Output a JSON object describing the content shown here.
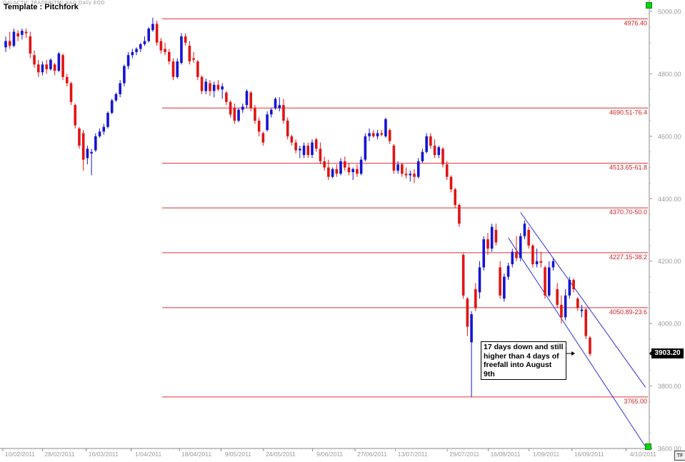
{
  "header": {
    "brand": "GALACTIC TRADER(TM)   XAO Daily EOD",
    "template": "Template : Pitchfork"
  },
  "annotation": {
    "text": "17 days down and still\nhigher than 4 days of\nfreefall into August 9th"
  },
  "last_price": "3903.20",
  "tf_label": "TF",
  "colors": {
    "up": "#1414d2",
    "down": "#e01414",
    "fib_line": "#e03030",
    "fib_text": "#d02020",
    "pitchfork": "#2d2de6",
    "axis": "#888888"
  },
  "chart_data": {
    "type": "candlestick",
    "title": "",
    "ylim": [
      3600,
      5000
    ],
    "y_ticks": [
      "5000.00",
      "4800.00",
      "4600.00",
      "4400.00",
      "4200.00",
      "4000.00",
      "3800.00",
      "3600.00"
    ],
    "x_ticks": [
      "10/02/2011",
      "28/02/2011",
      "16/03/2011",
      "1/04/2011",
      "18/04/2011",
      "9/05/2011",
      "24/05/2011",
      "9/06/2011",
      "27/06/2011",
      "13/07/2011",
      "29/07/2011",
      "16/08/2011",
      "1/09/2011",
      "16/09/2011",
      "4/10/2011"
    ],
    "retracement_levels": [
      {
        "price": 4976.4,
        "label": "4976.40"
      },
      {
        "price": 4690.51,
        "label": "4690.51-76.4"
      },
      {
        "price": 4513.65,
        "label": "4513.65-61.8"
      },
      {
        "price": 4370.7,
        "label": "4370.70-50.0"
      },
      {
        "price": 4227.15,
        "label": "4227.15-38.2"
      },
      {
        "price": 4050.89,
        "label": "4050.89-23.6"
      },
      {
        "price": 3765.0,
        "label": "3765.00"
      }
    ],
    "pitchfork": [
      {
        "from": [
          4,
          4356
        ],
        "to": [
          19,
          3796
        ]
      },
      {
        "from": [
          1,
          4275
        ],
        "to": [
          19,
          3606
        ]
      }
    ],
    "candles": [
      {
        "x": 0,
        "o": 4885,
        "h": 4920,
        "l": 4870,
        "c": 4905
      },
      {
        "x": 1,
        "o": 4905,
        "h": 4935,
        "l": 4880,
        "c": 4890
      },
      {
        "x": 2,
        "o": 4890,
        "h": 4945,
        "l": 4885,
        "c": 4935
      },
      {
        "x": 3,
        "o": 4930,
        "h": 4940,
        "l": 4905,
        "c": 4920
      },
      {
        "x": 4,
        "o": 4925,
        "h": 4945,
        "l": 4910,
        "c": 4938
      },
      {
        "x": 5,
        "o": 4935,
        "h": 4945,
        "l": 4915,
        "c": 4930
      },
      {
        "x": 6,
        "o": 4920,
        "h": 4935,
        "l": 4850,
        "c": 4865
      },
      {
        "x": 7,
        "o": 4860,
        "h": 4875,
        "l": 4820,
        "c": 4830
      },
      {
        "x": 8,
        "o": 4830,
        "h": 4845,
        "l": 4790,
        "c": 4805
      },
      {
        "x": 9,
        "o": 4805,
        "h": 4840,
        "l": 4795,
        "c": 4830
      },
      {
        "x": 10,
        "o": 4830,
        "h": 4845,
        "l": 4800,
        "c": 4815
      },
      {
        "x": 11,
        "o": 4815,
        "h": 4850,
        "l": 4810,
        "c": 4845
      },
      {
        "x": 12,
        "o": 4830,
        "h": 4835,
        "l": 4795,
        "c": 4810
      },
      {
        "x": 13,
        "o": 4810,
        "h": 4870,
        "l": 4805,
        "c": 4865
      },
      {
        "x": 14,
        "o": 4860,
        "h": 4865,
        "l": 4780,
        "c": 4790
      },
      {
        "x": 15,
        "o": 4790,
        "h": 4800,
        "l": 4760,
        "c": 4770
      },
      {
        "x": 16,
        "o": 4770,
        "h": 4775,
        "l": 4700,
        "c": 4710
      },
      {
        "x": 17,
        "o": 4700,
        "h": 4705,
        "l": 4625,
        "c": 4635
      },
      {
        "x": 18,
        "o": 4625,
        "h": 4630,
        "l": 4560,
        "c": 4570
      },
      {
        "x": 19,
        "o": 4610,
        "h": 4620,
        "l": 4490,
        "c": 4525
      },
      {
        "x": 20,
        "o": 4530,
        "h": 4570,
        "l": 4510,
        "c": 4560
      },
      {
        "x": 21,
        "o": 4545,
        "h": 4560,
        "l": 4475,
        "c": 4550
      },
      {
        "x": 22,
        "o": 4555,
        "h": 4610,
        "l": 4550,
        "c": 4600
      },
      {
        "x": 23,
        "o": 4600,
        "h": 4625,
        "l": 4595,
        "c": 4615
      },
      {
        "x": 24,
        "o": 4615,
        "h": 4640,
        "l": 4605,
        "c": 4630
      },
      {
        "x": 25,
        "o": 4630,
        "h": 4680,
        "l": 4625,
        "c": 4675
      },
      {
        "x": 26,
        "o": 4675,
        "h": 4720,
        "l": 4670,
        "c": 4715
      },
      {
        "x": 27,
        "o": 4715,
        "h": 4740,
        "l": 4710,
        "c": 4735
      },
      {
        "x": 28,
        "o": 4735,
        "h": 4780,
        "l": 4725,
        "c": 4770
      },
      {
        "x": 29,
        "o": 4770,
        "h": 4830,
        "l": 4760,
        "c": 4825
      },
      {
        "x": 30,
        "o": 4825,
        "h": 4870,
        "l": 4815,
        "c": 4860
      },
      {
        "x": 31,
        "o": 4860,
        "h": 4880,
        "l": 4850,
        "c": 4870
      },
      {
        "x": 32,
        "o": 4870,
        "h": 4885,
        "l": 4860,
        "c": 4880
      },
      {
        "x": 33,
        "o": 4880,
        "h": 4900,
        "l": 4870,
        "c": 4895
      },
      {
        "x": 34,
        "o": 4895,
        "h": 4920,
        "l": 4890,
        "c": 4905
      },
      {
        "x": 35,
        "o": 4905,
        "h": 4950,
        "l": 4900,
        "c": 4945
      },
      {
        "x": 36,
        "o": 4940,
        "h": 4980,
        "l": 4935,
        "c": 4960
      },
      {
        "x": 37,
        "o": 4960,
        "h": 4970,
        "l": 4890,
        "c": 4900
      },
      {
        "x": 38,
        "o": 4905,
        "h": 4915,
        "l": 4865,
        "c": 4875
      },
      {
        "x": 39,
        "o": 4880,
        "h": 4900,
        "l": 4860,
        "c": 4870
      },
      {
        "x": 40,
        "o": 4870,
        "h": 4880,
        "l": 4830,
        "c": 4840
      },
      {
        "x": 41,
        "o": 4840,
        "h": 4850,
        "l": 4780,
        "c": 4790
      },
      {
        "x": 42,
        "o": 4790,
        "h": 4850,
        "l": 4785,
        "c": 4840
      },
      {
        "x": 43,
        "o": 4835,
        "h": 4930,
        "l": 4830,
        "c": 4920
      },
      {
        "x": 44,
        "o": 4920,
        "h": 4930,
        "l": 4890,
        "c": 4900
      },
      {
        "x": 45,
        "o": 4890,
        "h": 4905,
        "l": 4830,
        "c": 4840
      },
      {
        "x": 46,
        "o": 4850,
        "h": 4870,
        "l": 4835,
        "c": 4845
      },
      {
        "x": 47,
        "o": 4840,
        "h": 4845,
        "l": 4780,
        "c": 4790
      },
      {
        "x": 48,
        "o": 4790,
        "h": 4795,
        "l": 4735,
        "c": 4745
      },
      {
        "x": 49,
        "o": 4745,
        "h": 4785,
        "l": 4735,
        "c": 4775
      },
      {
        "x": 50,
        "o": 4770,
        "h": 4780,
        "l": 4730,
        "c": 4745
      },
      {
        "x": 51,
        "o": 4745,
        "h": 4775,
        "l": 4725,
        "c": 4765
      },
      {
        "x": 52,
        "o": 4765,
        "h": 4780,
        "l": 4745,
        "c": 4750
      },
      {
        "x": 53,
        "o": 4750,
        "h": 4770,
        "l": 4720,
        "c": 4760
      },
      {
        "x": 54,
        "o": 4740,
        "h": 4745,
        "l": 4700,
        "c": 4710
      },
      {
        "x": 55,
        "o": 4710,
        "h": 4715,
        "l": 4660,
        "c": 4670
      },
      {
        "x": 56,
        "o": 4690,
        "h": 4705,
        "l": 4640,
        "c": 4650
      },
      {
        "x": 57,
        "o": 4650,
        "h": 4690,
        "l": 4645,
        "c": 4685
      },
      {
        "x": 58,
        "o": 4685,
        "h": 4705,
        "l": 4675,
        "c": 4695
      },
      {
        "x": 59,
        "o": 4700,
        "h": 4750,
        "l": 4690,
        "c": 4745
      },
      {
        "x": 60,
        "o": 4740,
        "h": 4745,
        "l": 4680,
        "c": 4690
      },
      {
        "x": 61,
        "o": 4690,
        "h": 4700,
        "l": 4640,
        "c": 4650
      },
      {
        "x": 62,
        "o": 4650,
        "h": 4660,
        "l": 4600,
        "c": 4615
      },
      {
        "x": 63,
        "o": 4610,
        "h": 4615,
        "l": 4570,
        "c": 4580
      },
      {
        "x": 64,
        "o": 4620,
        "h": 4680,
        "l": 4615,
        "c": 4670
      },
      {
        "x": 65,
        "o": 4670,
        "h": 4690,
        "l": 4660,
        "c": 4685
      },
      {
        "x": 66,
        "o": 4690,
        "h": 4725,
        "l": 4685,
        "c": 4720
      },
      {
        "x": 67,
        "o": 4690,
        "h": 4725,
        "l": 4680,
        "c": 4700
      },
      {
        "x": 68,
        "o": 4700,
        "h": 4720,
        "l": 4640,
        "c": 4650
      },
      {
        "x": 69,
        "o": 4650,
        "h": 4660,
        "l": 4590,
        "c": 4600
      },
      {
        "x": 70,
        "o": 4600,
        "h": 4605,
        "l": 4570,
        "c": 4580
      },
      {
        "x": 71,
        "o": 4580,
        "h": 4590,
        "l": 4545,
        "c": 4555
      },
      {
        "x": 72,
        "o": 4555,
        "h": 4570,
        "l": 4530,
        "c": 4560
      },
      {
        "x": 73,
        "o": 4540,
        "h": 4580,
        "l": 4530,
        "c": 4570
      },
      {
        "x": 74,
        "o": 4570,
        "h": 4580,
        "l": 4530,
        "c": 4540
      },
      {
        "x": 75,
        "o": 4540,
        "h": 4590,
        "l": 4530,
        "c": 4580
      },
      {
        "x": 76,
        "o": 4590,
        "h": 4595,
        "l": 4550,
        "c": 4560
      },
      {
        "x": 77,
        "o": 4560,
        "h": 4580,
        "l": 4510,
        "c": 4520
      },
      {
        "x": 78,
        "o": 4520,
        "h": 4535,
        "l": 4490,
        "c": 4500
      },
      {
        "x": 79,
        "o": 4500,
        "h": 4525,
        "l": 4460,
        "c": 4470
      },
      {
        "x": 80,
        "o": 4470,
        "h": 4500,
        "l": 4465,
        "c": 4495
      },
      {
        "x": 81,
        "o": 4495,
        "h": 4510,
        "l": 4470,
        "c": 4480
      },
      {
        "x": 82,
        "o": 4480,
        "h": 4530,
        "l": 4475,
        "c": 4520
      },
      {
        "x": 83,
        "o": 4520,
        "h": 4535,
        "l": 4490,
        "c": 4500
      },
      {
        "x": 84,
        "o": 4500,
        "h": 4515,
        "l": 4475,
        "c": 4485
      },
      {
        "x": 85,
        "o": 4485,
        "h": 4500,
        "l": 4460,
        "c": 4495
      },
      {
        "x": 86,
        "o": 4495,
        "h": 4510,
        "l": 4470,
        "c": 4480
      },
      {
        "x": 87,
        "o": 4480,
        "h": 4535,
        "l": 4475,
        "c": 4525
      },
      {
        "x": 88,
        "o": 4525,
        "h": 4610,
        "l": 4520,
        "c": 4600
      },
      {
        "x": 89,
        "o": 4600,
        "h": 4625,
        "l": 4585,
        "c": 4610
      },
      {
        "x": 90,
        "o": 4610,
        "h": 4620,
        "l": 4595,
        "c": 4600
      },
      {
        "x": 91,
        "o": 4600,
        "h": 4620,
        "l": 4590,
        "c": 4610
      },
      {
        "x": 92,
        "o": 4610,
        "h": 4620,
        "l": 4600,
        "c": 4605
      },
      {
        "x": 93,
        "o": 4600,
        "h": 4660,
        "l": 4595,
        "c": 4655
      },
      {
        "x": 94,
        "o": 4620,
        "h": 4625,
        "l": 4575,
        "c": 4585
      },
      {
        "x": 95,
        "o": 4570,
        "h": 4575,
        "l": 4480,
        "c": 4490
      },
      {
        "x": 96,
        "o": 4490,
        "h": 4520,
        "l": 4480,
        "c": 4510
      },
      {
        "x": 97,
        "o": 4510,
        "h": 4515,
        "l": 4470,
        "c": 4480
      },
      {
        "x": 98,
        "o": 4480,
        "h": 4500,
        "l": 4465,
        "c": 4475
      },
      {
        "x": 99,
        "o": 4475,
        "h": 4490,
        "l": 4455,
        "c": 4480
      },
      {
        "x": 100,
        "o": 4480,
        "h": 4495,
        "l": 4450,
        "c": 4470
      },
      {
        "x": 101,
        "o": 4470,
        "h": 4530,
        "l": 4465,
        "c": 4520
      },
      {
        "x": 102,
        "o": 4520,
        "h": 4560,
        "l": 4515,
        "c": 4550
      },
      {
        "x": 103,
        "o": 4550,
        "h": 4610,
        "l": 4545,
        "c": 4600
      },
      {
        "x": 104,
        "o": 4600,
        "h": 4610,
        "l": 4560,
        "c": 4570
      },
      {
        "x": 105,
        "o": 4570,
        "h": 4590,
        "l": 4530,
        "c": 4540
      },
      {
        "x": 106,
        "o": 4540,
        "h": 4570,
        "l": 4530,
        "c": 4565
      },
      {
        "x": 107,
        "o": 4560,
        "h": 4565,
        "l": 4500,
        "c": 4510
      },
      {
        "x": 108,
        "o": 4510,
        "h": 4520,
        "l": 4460,
        "c": 4470
      },
      {
        "x": 109,
        "o": 4470,
        "h": 4475,
        "l": 4420,
        "c": 4430
      },
      {
        "x": 110,
        "o": 4430,
        "h": 4435,
        "l": 4370,
        "c": 4380
      },
      {
        "x": 111,
        "o": 4380,
        "h": 4385,
        "l": 4310,
        "c": 4320
      },
      {
        "x": 112,
        "o": 4220,
        "h": 4225,
        "l": 4080,
        "c": 4090
      },
      {
        "x": 113,
        "o": 4080,
        "h": 4085,
        "l": 3960,
        "c": 3990
      },
      {
        "x": 114,
        "o": 3940,
        "h": 4040,
        "l": 3765,
        "c": 4030
      },
      {
        "x": 115,
        "o": 4110,
        "h": 4130,
        "l": 4040,
        "c": 4050
      },
      {
        "x": 116,
        "o": 4100,
        "h": 4200,
        "l": 4080,
        "c": 4180
      },
      {
        "x": 117,
        "o": 4180,
        "h": 4280,
        "l": 4170,
        "c": 4270
      },
      {
        "x": 118,
        "o": 4270,
        "h": 4290,
        "l": 4220,
        "c": 4240
      },
      {
        "x": 119,
        "o": 4240,
        "h": 4320,
        "l": 4230,
        "c": 4310
      },
      {
        "x": 120,
        "o": 4300,
        "h": 4320,
        "l": 4250,
        "c": 4260
      },
      {
        "x": 121,
        "o": 4180,
        "h": 4200,
        "l": 4080,
        "c": 4090
      },
      {
        "x": 122,
        "o": 4080,
        "h": 4160,
        "l": 4070,
        "c": 4150
      },
      {
        "x": 123,
        "o": 4150,
        "h": 4195,
        "l": 4140,
        "c": 4185
      },
      {
        "x": 124,
        "o": 4190,
        "h": 4240,
        "l": 4180,
        "c": 4230
      },
      {
        "x": 125,
        "o": 4230,
        "h": 4280,
        "l": 4200,
        "c": 4210
      },
      {
        "x": 126,
        "o": 4210,
        "h": 4290,
        "l": 4200,
        "c": 4280
      },
      {
        "x": 127,
        "o": 4280,
        "h": 4330,
        "l": 4270,
        "c": 4320
      },
      {
        "x": 128,
        "o": 4300,
        "h": 4310,
        "l": 4240,
        "c": 4250
      },
      {
        "x": 129,
        "o": 4250,
        "h": 4255,
        "l": 4180,
        "c": 4190
      },
      {
        "x": 130,
        "o": 4190,
        "h": 4240,
        "l": 4180,
        "c": 4200
      },
      {
        "x": 131,
        "o": 4200,
        "h": 4230,
        "l": 4180,
        "c": 4195
      },
      {
        "x": 132,
        "o": 4180,
        "h": 4185,
        "l": 4080,
        "c": 4090
      },
      {
        "x": 133,
        "o": 4090,
        "h": 4200,
        "l": 4085,
        "c": 4180
      },
      {
        "x": 134,
        "o": 4180,
        "h": 4210,
        "l": 4170,
        "c": 4200
      },
      {
        "x": 135,
        "o": 4110,
        "h": 4130,
        "l": 4050,
        "c": 4060
      },
      {
        "x": 136,
        "o": 4060,
        "h": 4090,
        "l": 4000,
        "c": 4020
      },
      {
        "x": 137,
        "o": 4020,
        "h": 4110,
        "l": 4010,
        "c": 4090
      },
      {
        "x": 138,
        "o": 4090,
        "h": 4150,
        "l": 4080,
        "c": 4140
      },
      {
        "x": 139,
        "o": 4140,
        "h": 4145,
        "l": 4100,
        "c": 4110
      },
      {
        "x": 140,
        "o": 4080,
        "h": 4085,
        "l": 4040,
        "c": 4050
      },
      {
        "x": 141,
        "o": 4040,
        "h": 4060,
        "l": 4020,
        "c": 4045
      },
      {
        "x": 142,
        "o": 4045,
        "h": 4050,
        "l": 3950,
        "c": 3960
      },
      {
        "x": 143,
        "o": 3955,
        "h": 3960,
        "l": 3895,
        "c": 3903
      }
    ]
  }
}
